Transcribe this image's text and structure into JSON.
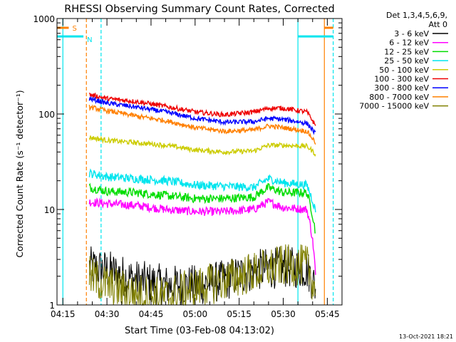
{
  "chart_data": {
    "type": "line",
    "title": "RHESSI Observing Summary Count Rates, Corrected",
    "xlabel": "Start Time (03-Feb-08 04:13:02)",
    "ylabel": "Corrected Count Rate (s⁻¹ detector⁻¹)",
    "xlim": [
      "04:13",
      "05:50"
    ],
    "ylim": [
      1,
      1000
    ],
    "yscale": "log",
    "x_ticks": [
      "04:15",
      "04:30",
      "04:45",
      "05:00",
      "05:15",
      "05:30",
      "05:45"
    ],
    "y_ticks": [
      "1",
      "10",
      "100",
      "1000"
    ],
    "timestamp": "13-Oct-2021 18:21",
    "legend": {
      "placement": "right",
      "header": [
        "Det 1,3,4,5,6,9,",
        "Att 0"
      ],
      "entries": [
        {
          "label": "3 - 6 keV",
          "color": "#000000"
        },
        {
          "label": "6 - 12 keV",
          "color": "#ff00ff"
        },
        {
          "label": "12 - 25 keV",
          "color": "#00dd00"
        },
        {
          "label": "25 - 50 keV",
          "color": "#00e5ee"
        },
        {
          "label": "50 - 100 keV",
          "color": "#cccc00"
        },
        {
          "label": "100 - 300 keV",
          "color": "#ee0000"
        },
        {
          "label": "300 - 800 keV",
          "color": "#0000ff"
        },
        {
          "label": "800 - 7000 keV",
          "color": "#ff8000"
        },
        {
          "label": "7000 - 15000 keV",
          "color": "#808000"
        }
      ]
    },
    "flags": [
      {
        "label": "S",
        "color": "#ff8000",
        "level": 800,
        "ranges": [
          [
            "04:13",
            "04:17"
          ],
          [
            "05:44",
            "05:47"
          ]
        ]
      },
      {
        "label": "N",
        "color": "#00e5ee",
        "level": 650,
        "ranges": [
          [
            "04:13",
            "04:22"
          ],
          [
            "05:35",
            "05:47"
          ]
        ]
      }
    ],
    "markers": [
      {
        "x": "04:15",
        "color": "#00e5ee",
        "style": "solid"
      },
      {
        "x": "04:23",
        "color": "#ff8000",
        "style": "dashed"
      },
      {
        "x": "04:28",
        "color": "#00e5ee",
        "style": "dashed"
      },
      {
        "x": "05:35",
        "color": "#00e5ee",
        "style": "solid"
      },
      {
        "x": "05:44",
        "color": "#ff8000",
        "style": "solid"
      },
      {
        "x": "05:47",
        "color": "#00e5ee",
        "style": "dashed"
      }
    ],
    "series_time_range": [
      "04:24",
      "05:41"
    ],
    "series": [
      {
        "name": "3 - 6 keV",
        "color": "#000000",
        "x": [
          "04:24",
          "04:30",
          "04:40",
          "04:50",
          "05:00",
          "05:10",
          "05:20",
          "05:30",
          "05:38",
          "05:41"
        ],
        "y": [
          2.5,
          2.3,
          1.8,
          1.6,
          1.6,
          1.8,
          2.3,
          2.5,
          2.4,
          1.5
        ]
      },
      {
        "name": "6 - 12 keV",
        "color": "#ff00ff",
        "x": [
          "04:24",
          "04:30",
          "04:40",
          "04:50",
          "05:00",
          "05:10",
          "05:20",
          "05:25",
          "05:30",
          "05:38",
          "05:41"
        ],
        "y": [
          12,
          11.5,
          11,
          10,
          9.5,
          9.5,
          10,
          12,
          10.5,
          10,
          2
        ]
      },
      {
        "name": "12 - 25 keV",
        "color": "#00dd00",
        "x": [
          "04:24",
          "04:30",
          "04:40",
          "04:50",
          "05:00",
          "05:10",
          "05:20",
          "05:25",
          "05:30",
          "05:38",
          "05:41"
        ],
        "y": [
          17,
          15.5,
          15,
          14,
          13,
          13,
          13.5,
          17,
          15,
          15,
          5.5
        ]
      },
      {
        "name": "25 - 50 keV",
        "color": "#00e5ee",
        "x": [
          "04:24",
          "04:30",
          "04:40",
          "04:50",
          "05:00",
          "05:10",
          "05:20",
          "05:25",
          "05:30",
          "05:38",
          "05:41"
        ],
        "y": [
          24,
          22,
          21,
          20,
          18,
          17.5,
          17,
          21,
          19,
          18,
          9.5
        ]
      },
      {
        "name": "50 - 100 keV",
        "color": "#cccc00",
        "x": [
          "04:24",
          "04:30",
          "04:40",
          "04:50",
          "05:00",
          "05:10",
          "05:20",
          "05:25",
          "05:30",
          "05:38",
          "05:41"
        ],
        "y": [
          57,
          53,
          50,
          47,
          42,
          40,
          41,
          47,
          47,
          46,
          38
        ]
      },
      {
        "name": "100 - 300 keV",
        "color": "#ee0000",
        "x": [
          "04:24",
          "04:30",
          "04:40",
          "04:50",
          "05:00",
          "05:10",
          "05:20",
          "05:25",
          "05:30",
          "05:38",
          "05:41"
        ],
        "y": [
          160,
          145,
          135,
          120,
          105,
          98,
          105,
          115,
          115,
          105,
          75
        ]
      },
      {
        "name": "300 - 800 keV",
        "color": "#0000ff",
        "x": [
          "04:24",
          "04:30",
          "04:40",
          "04:50",
          "05:00",
          "05:10",
          "05:20",
          "05:25",
          "05:30",
          "05:38",
          "05:41"
        ],
        "y": [
          145,
          130,
          118,
          105,
          90,
          82,
          83,
          90,
          88,
          80,
          62
        ]
      },
      {
        "name": "800 - 7000 keV",
        "color": "#ff8000",
        "x": [
          "04:24",
          "04:30",
          "04:40",
          "04:50",
          "05:00",
          "05:10",
          "05:20",
          "05:25",
          "05:30",
          "05:38",
          "05:41"
        ],
        "y": [
          118,
          108,
          95,
          85,
          72,
          66,
          68,
          75,
          72,
          66,
          50
        ]
      },
      {
        "name": "7000 - 15000 keV",
        "color": "#808000",
        "x": [
          "04:24",
          "04:30",
          "04:40",
          "04:50",
          "05:00",
          "05:10",
          "05:20",
          "05:30",
          "05:38",
          "05:41"
        ],
        "y": [
          2,
          1.6,
          1.3,
          1.2,
          1.5,
          1.8,
          2.2,
          2.6,
          2.6,
          1.4
        ]
      }
    ]
  }
}
